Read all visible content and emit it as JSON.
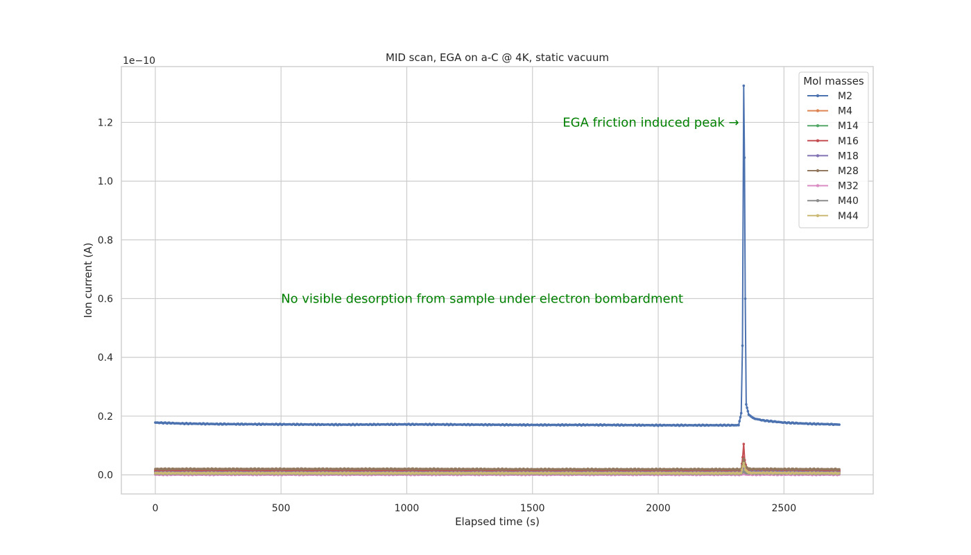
{
  "chart_data": {
    "type": "line",
    "title": "MID scan, EGA on a-C @ 4K, static vacuum",
    "xlabel": "Elapsed time (s)",
    "ylabel": "Ion current (A)",
    "y_offset_text": "1e−10",
    "y_scale": 1e-10,
    "xlim": [
      -135,
      2855
    ],
    "ylim": [
      -0.065,
      1.39
    ],
    "x_ticks": [
      0,
      500,
      1000,
      1500,
      2000,
      2500
    ],
    "y_ticks": [
      0.0,
      0.2,
      0.4,
      0.6,
      0.8,
      1.0,
      1.2
    ],
    "x_tick_labels": [
      "0",
      "500",
      "1000",
      "1500",
      "2000",
      "2500"
    ],
    "y_tick_labels": [
      "0.0",
      "0.2",
      "0.4",
      "0.6",
      "0.8",
      "1.0",
      "1.2"
    ],
    "grid": true,
    "legend": {
      "title": "Mol masses",
      "placement": "top-right",
      "entries": [
        "M2",
        "M4",
        "M14",
        "M16",
        "M18",
        "M28",
        "M32",
        "M40",
        "M44"
      ]
    },
    "annotations": [
      {
        "text": "EGA friction induced peak →",
        "x": 1620,
        "y": 1.2
      },
      {
        "text": "No visible desorption from sample under electron bombardment",
        "x": 500,
        "y": 0.6
      }
    ],
    "series": [
      {
        "name": "M2",
        "color": "#4c72b0",
        "points": [
          [
            0,
            0.178
          ],
          [
            100,
            0.175
          ],
          [
            250,
            0.173
          ],
          [
            500,
            0.172
          ],
          [
            750,
            0.171
          ],
          [
            1000,
            0.172
          ],
          [
            1250,
            0.171
          ],
          [
            1500,
            0.17
          ],
          [
            1750,
            0.17
          ],
          [
            2000,
            0.169
          ],
          [
            2200,
            0.169
          ],
          [
            2320,
            0.169
          ],
          [
            2330,
            0.21
          ],
          [
            2335,
            0.44
          ],
          [
            2340,
            1.325
          ],
          [
            2343,
            1.08
          ],
          [
            2346,
            0.6
          ],
          [
            2350,
            0.24
          ],
          [
            2360,
            0.205
          ],
          [
            2380,
            0.192
          ],
          [
            2420,
            0.185
          ],
          [
            2500,
            0.178
          ],
          [
            2600,
            0.174
          ],
          [
            2700,
            0.172
          ],
          [
            2720,
            0.171
          ]
        ]
      },
      {
        "name": "M4",
        "color": "#dd8452",
        "points": [
          [
            0,
            0.01
          ],
          [
            500,
            0.01
          ],
          [
            1000,
            0.01
          ],
          [
            1500,
            0.01
          ],
          [
            2000,
            0.01
          ],
          [
            2330,
            0.01
          ],
          [
            2340,
            0.015
          ],
          [
            2350,
            0.01
          ],
          [
            2720,
            0.01
          ]
        ]
      },
      {
        "name": "M14",
        "color": "#55a868",
        "points": [
          [
            0,
            0.012
          ],
          [
            500,
            0.012
          ],
          [
            1000,
            0.012
          ],
          [
            1500,
            0.012
          ],
          [
            2000,
            0.012
          ],
          [
            2330,
            0.012
          ],
          [
            2340,
            0.03
          ],
          [
            2350,
            0.014
          ],
          [
            2720,
            0.012
          ]
        ]
      },
      {
        "name": "M16",
        "color": "#c44e52",
        "points": [
          [
            0,
            0.015
          ],
          [
            500,
            0.015
          ],
          [
            1000,
            0.015
          ],
          [
            1500,
            0.015
          ],
          [
            2000,
            0.015
          ],
          [
            2330,
            0.016
          ],
          [
            2336,
            0.06
          ],
          [
            2340,
            0.105
          ],
          [
            2344,
            0.05
          ],
          [
            2352,
            0.018
          ],
          [
            2720,
            0.015
          ]
        ]
      },
      {
        "name": "M18",
        "color": "#8172b3",
        "points": [
          [
            0,
            0.008
          ],
          [
            500,
            0.008
          ],
          [
            1000,
            0.008
          ],
          [
            1500,
            0.008
          ],
          [
            2000,
            0.008
          ],
          [
            2330,
            0.008
          ],
          [
            2340,
            0.022
          ],
          [
            2350,
            0.01
          ],
          [
            2720,
            0.008
          ]
        ]
      },
      {
        "name": "M28",
        "color": "#937860",
        "points": [
          [
            0,
            0.02
          ],
          [
            500,
            0.02
          ],
          [
            1000,
            0.02
          ],
          [
            1500,
            0.019
          ],
          [
            2000,
            0.019
          ],
          [
            2330,
            0.019
          ],
          [
            2340,
            0.055
          ],
          [
            2346,
            0.03
          ],
          [
            2360,
            0.02
          ],
          [
            2720,
            0.019
          ]
        ]
      },
      {
        "name": "M32",
        "color": "#da8bc3",
        "points": [
          [
            0,
            0.001
          ],
          [
            500,
            0.001
          ],
          [
            1000,
            0.001
          ],
          [
            1500,
            0.001
          ],
          [
            2000,
            0.001
          ],
          [
            2330,
            0.001
          ],
          [
            2340,
            0.003
          ],
          [
            2350,
            0.001
          ],
          [
            2720,
            0.001
          ]
        ]
      },
      {
        "name": "M40",
        "color": "#8c8c8c",
        "points": [
          [
            0,
            0.004
          ],
          [
            500,
            0.004
          ],
          [
            1000,
            0.004
          ],
          [
            1500,
            0.004
          ],
          [
            2000,
            0.004
          ],
          [
            2330,
            0.004
          ],
          [
            2340,
            0.012
          ],
          [
            2350,
            0.005
          ],
          [
            2720,
            0.004
          ]
        ]
      },
      {
        "name": "M44",
        "color": "#ccb974",
        "points": [
          [
            0,
            0.006
          ],
          [
            500,
            0.006
          ],
          [
            1000,
            0.006
          ],
          [
            1500,
            0.006
          ],
          [
            2000,
            0.006
          ],
          [
            2330,
            0.006
          ],
          [
            2340,
            0.04
          ],
          [
            2346,
            0.018
          ],
          [
            2360,
            0.007
          ],
          [
            2720,
            0.006
          ]
        ]
      }
    ]
  }
}
